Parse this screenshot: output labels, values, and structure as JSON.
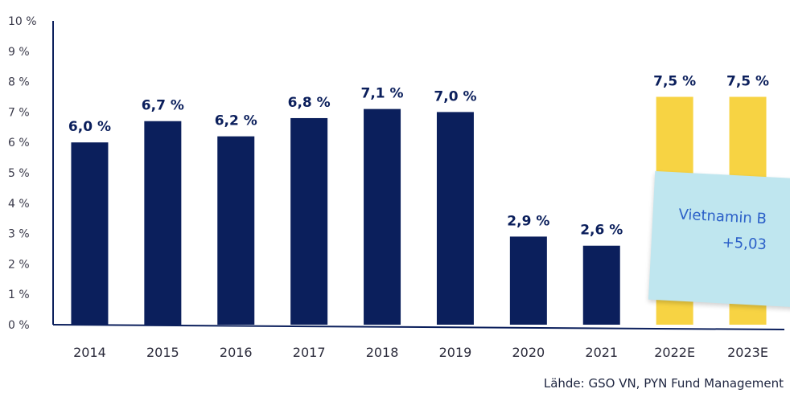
{
  "chart_data": {
    "type": "bar",
    "categories": [
      "2014",
      "2015",
      "2016",
      "2017",
      "2018",
      "2019",
      "2020",
      "2021",
      "2022E",
      "2023E"
    ],
    "values": [
      6.0,
      6.7,
      6.2,
      6.8,
      7.1,
      7.0,
      2.9,
      2.6,
      7.5,
      7.5
    ],
    "value_labels": [
      "6,0 %",
      "6,7 %",
      "6,2 %",
      "6,8 %",
      "7,1 %",
      "7,0 %",
      "2,9 %",
      "2,6 %",
      "7,5 %",
      "7,5 %"
    ],
    "estimate": [
      false,
      false,
      false,
      false,
      false,
      false,
      false,
      false,
      true,
      true
    ],
    "yticks": [
      "0 %",
      "1 %",
      "2 %",
      "3 %",
      "4 %",
      "5 %",
      "6 %",
      "7 %",
      "8 %",
      "9 %",
      "10 %"
    ],
    "ylim": [
      0,
      10
    ],
    "title": "",
    "xlabel": "",
    "ylabel": "",
    "grid": false,
    "colors": {
      "actual": "#0b1f5c",
      "estimate": "#f7d343",
      "axis": "#0b1f5c"
    }
  },
  "source": "Lähde: GSO VN, PYN Fund Management",
  "sticky_note": {
    "line1": "Vietnamin B",
    "line2": "+5,03",
    "color": "#bfe6ef",
    "text_color": "#2a5fc8"
  }
}
